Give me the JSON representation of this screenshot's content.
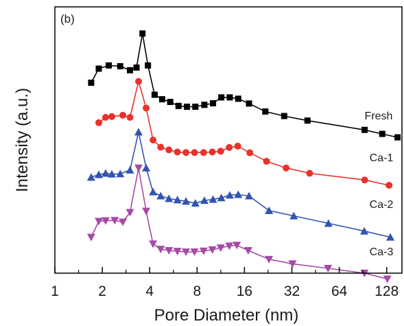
{
  "chart_data": {
    "type": "line",
    "panel_label": "(b)",
    "xlabel": "Pore Diameter (nm)",
    "ylabel": "Intensity (a.u.)",
    "x_scale": "log2",
    "xlim": [
      1,
      160
    ],
    "ylim": [
      0,
      10
    ],
    "x_ticks": [
      1,
      2,
      4,
      8,
      16,
      32,
      64,
      128
    ],
    "x_tick_labels": [
      "1",
      "2",
      "4",
      "8",
      "16",
      "32",
      "64",
      "128"
    ],
    "grid": false,
    "legend": "none",
    "series": [
      {
        "name": "Fresh",
        "color": "#000000",
        "marker": "square",
        "x": [
          1.7,
          1.9,
          2.2,
          2.6,
          3.0,
          3.3,
          3.6,
          3.9,
          4.3,
          4.8,
          5.4,
          6.1,
          6.9,
          7.8,
          8.9,
          10.1,
          11.4,
          12.9,
          14.6,
          17.1,
          21.7,
          28.6,
          40.2,
          92.7,
          120.0,
          150.0
        ],
        "y": [
          7.15,
          7.68,
          7.8,
          7.77,
          7.62,
          7.72,
          9.0,
          7.8,
          6.7,
          6.53,
          6.43,
          6.28,
          6.25,
          6.25,
          6.32,
          6.38,
          6.6,
          6.6,
          6.55,
          6.37,
          6.07,
          5.9,
          5.73,
          5.38,
          5.23,
          5.1
        ]
      },
      {
        "name": "Ca-1",
        "color": "#e8322a",
        "marker": "circle",
        "x": [
          1.9,
          2.1,
          2.3,
          2.7,
          3.0,
          3.4,
          3.8,
          4.2,
          4.7,
          5.3,
          6.0,
          6.8,
          7.7,
          8.8,
          10.0,
          11.3,
          12.8,
          14.5,
          17.3,
          22.1,
          29.4,
          41.5,
          92.8,
          132.5
        ],
        "y": [
          5.65,
          5.85,
          5.88,
          5.93,
          5.85,
          7.2,
          6.2,
          5.0,
          4.73,
          4.63,
          4.55,
          4.53,
          4.53,
          4.53,
          4.55,
          4.58,
          4.72,
          4.77,
          4.52,
          4.2,
          3.95,
          3.75,
          3.5,
          3.3
        ]
      },
      {
        "name": "Ca-2",
        "color": "#3253b0",
        "marker": "triangle-up",
        "x": [
          1.7,
          1.9,
          2.1,
          2.3,
          2.6,
          3.0,
          3.4,
          3.8,
          4.2,
          4.7,
          5.3,
          6.0,
          6.8,
          7.8,
          8.9,
          10.1,
          11.4,
          12.9,
          14.6,
          17.1,
          22.9,
          32.9,
          54.6,
          92.2,
          135.0
        ],
        "y": [
          3.6,
          3.7,
          3.75,
          3.72,
          3.73,
          3.87,
          5.3,
          3.95,
          3.05,
          2.9,
          2.8,
          2.75,
          2.7,
          2.63,
          2.73,
          2.77,
          2.83,
          2.93,
          2.95,
          2.9,
          2.35,
          2.15,
          1.87,
          1.58,
          1.35
        ]
      },
      {
        "name": "Ca-3",
        "color": "#a64aa6",
        "marker": "triangle-down",
        "x": [
          1.7,
          1.9,
          2.1,
          2.4,
          2.7,
          3.0,
          3.4,
          3.8,
          4.2,
          4.7,
          5.3,
          6.0,
          6.8,
          7.7,
          8.8,
          10.0,
          11.3,
          12.8,
          14.3,
          16.9,
          22.9,
          32.3,
          54.3,
          92.4,
          129.2
        ],
        "y": [
          1.35,
          1.95,
          1.97,
          1.98,
          1.92,
          2.28,
          3.95,
          2.33,
          1.1,
          0.9,
          0.85,
          0.82,
          0.8,
          0.8,
          0.83,
          0.88,
          0.95,
          1.02,
          1.05,
          0.85,
          0.52,
          0.35,
          0.18,
          0.0,
          -0.22
        ]
      }
    ]
  }
}
